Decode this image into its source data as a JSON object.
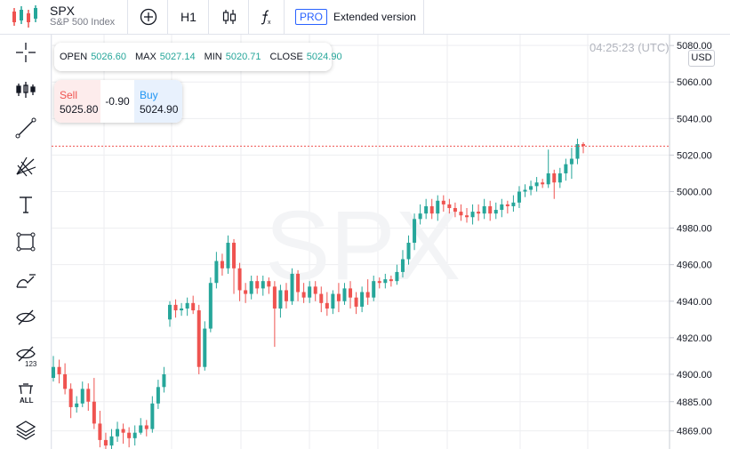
{
  "header": {
    "symbol": "SPX",
    "description": "S&P 500 Index",
    "timeframe": "H1",
    "pro_label": "PRO",
    "extended_label": "Extended version"
  },
  "ohlc": {
    "open_label": "OPEN",
    "open": "5026.60",
    "max_label": "MAX",
    "max": "5027.14",
    "min_label": "MIN",
    "min": "5020.71",
    "close_label": "CLOSE",
    "close": "5024.90"
  },
  "trade": {
    "sell_label": "Sell",
    "sell_price": "5025.80",
    "spread": "-0.90",
    "buy_label": "Buy",
    "buy_price": "5024.90"
  },
  "clock": "04:25:23 (UTC)",
  "currency": "USD",
  "watermark": "SPX",
  "left_tools": [
    "crosshair-icon",
    "indicators-icon",
    "trendline-icon",
    "fib-icon",
    "text-icon",
    "shape-icon",
    "brush-icon",
    "hide-drawings-icon",
    "hide-indicators-icon",
    "delete-all-icon",
    "layers-icon"
  ],
  "colors": {
    "up": "#26a69a",
    "down": "#ef5350",
    "price_line": "#ef5350"
  },
  "chart_data": {
    "type": "candlestick",
    "ylabels": [
      "5080.00",
      "5060.00",
      "5040.00",
      "5020.00",
      "5000.00",
      "4980.00",
      "4960.00",
      "4940.00",
      "4920.00",
      "4900.00",
      "4885.00",
      "4869.00"
    ],
    "ytick_values": [
      5080,
      5060,
      5040,
      5020,
      5000,
      4980,
      4960,
      4940,
      4920,
      4900,
      4885,
      4869
    ],
    "ylim": [
      4862,
      5083
    ],
    "last_price": 5024.9,
    "grid": true,
    "candles": [
      [
        4898,
        4904,
        4910,
        4896
      ],
      [
        4904,
        4900,
        4908,
        4895
      ],
      [
        4900,
        4892,
        4906,
        4889
      ],
      [
        4892,
        4882,
        4895,
        4876
      ],
      [
        4882,
        4884,
        4888,
        4879
      ],
      [
        4884,
        4892,
        4896,
        4882
      ],
      [
        4892,
        4885,
        4895,
        4880
      ],
      [
        4885,
        4873,
        4898,
        4870
      ],
      [
        4873,
        4864,
        4880,
        4860
      ],
      [
        4864,
        4861,
        4868,
        4857
      ],
      [
        4861,
        4866,
        4870,
        4857
      ],
      [
        4866,
        4870,
        4874,
        4863
      ],
      [
        4870,
        4868,
        4873,
        4862
      ],
      [
        4868,
        4865,
        4871,
        4860
      ],
      [
        4865,
        4868,
        4872,
        4861
      ],
      [
        4868,
        4872,
        4876,
        4867
      ],
      [
        4872,
        4870,
        4875,
        4866
      ],
      [
        4870,
        4884,
        4888,
        4868
      ],
      [
        4884,
        4893,
        4897,
        4881
      ],
      [
        4893,
        4900,
        4904,
        4890
      ],
      [
        4930,
        4938,
        4940,
        4926
      ],
      [
        4938,
        4935,
        4941,
        4931
      ],
      [
        4935,
        4936,
        4939,
        4932
      ],
      [
        4936,
        4939,
        4942,
        4932
      ],
      [
        4939,
        4935,
        4943,
        4933
      ],
      [
        4935,
        4904,
        4938,
        4900
      ],
      [
        4904,
        4925,
        4929,
        4902
      ],
      [
        4925,
        4950,
        4953,
        4923
      ],
      [
        4950,
        4962,
        4967,
        4947
      ],
      [
        4962,
        4958,
        4966,
        4954
      ],
      [
        4958,
        4972,
        4976,
        4955
      ],
      [
        4972,
        4958,
        4974,
        4944
      ],
      [
        4958,
        4946,
        4961,
        4940
      ],
      [
        4946,
        4944,
        4950,
        4939
      ],
      [
        4944,
        4951,
        4954,
        4941
      ],
      [
        4951,
        4947,
        4954,
        4944
      ],
      [
        4947,
        4951,
        4954,
        4943
      ],
      [
        4951,
        4948,
        4953,
        4944
      ],
      [
        4948,
        4936,
        4951,
        4915
      ],
      [
        4936,
        4946,
        4949,
        4931
      ],
      [
        4946,
        4940,
        4950,
        4936
      ],
      [
        4940,
        4955,
        4958,
        4938
      ],
      [
        4955,
        4945,
        4957,
        4940
      ],
      [
        4945,
        4942,
        4950,
        4939
      ],
      [
        4942,
        4948,
        4951,
        4939
      ],
      [
        4948,
        4944,
        4951,
        4940
      ],
      [
        4944,
        4939,
        4948,
        4934
      ],
      [
        4939,
        4936,
        4945,
        4932
      ],
      [
        4936,
        4944,
        4946,
        4933
      ],
      [
        4944,
        4940,
        4950,
        4934
      ],
      [
        4940,
        4947,
        4950,
        4938
      ],
      [
        4947,
        4942,
        4951,
        4936
      ],
      [
        4942,
        4937,
        4945,
        4933
      ],
      [
        4937,
        4945,
        4948,
        4934
      ],
      [
        4945,
        4942,
        4952,
        4938
      ],
      [
        4942,
        4951,
        4954,
        4940
      ],
      [
        4951,
        4950,
        4953,
        4947
      ],
      [
        4950,
        4952,
        4955,
        4947
      ],
      [
        4952,
        4951,
        4954,
        4948
      ],
      [
        4951,
        4956,
        4960,
        4949
      ],
      [
        4956,
        4963,
        4968,
        4953
      ],
      [
        4963,
        4972,
        4976,
        4960
      ],
      [
        4972,
        4985,
        4988,
        4968
      ],
      [
        4985,
        4988,
        4993,
        4982
      ],
      [
        4988,
        4992,
        4996,
        4985
      ],
      [
        4992,
        4988,
        4996,
        4985
      ],
      [
        4988,
        4995,
        4998,
        4984
      ],
      [
        4995,
        4993,
        4998,
        4989
      ],
      [
        4993,
        4991,
        4996,
        4988
      ],
      [
        4991,
        4989,
        4994,
        4986
      ],
      [
        4989,
        4987,
        4993,
        4984
      ],
      [
        4987,
        4986,
        4991,
        4983
      ],
      [
        4986,
        4989,
        4993,
        4982
      ],
      [
        4989,
        4988,
        4993,
        4984
      ],
      [
        4988,
        4992,
        4996,
        4985
      ],
      [
        4992,
        4988,
        4995,
        4984
      ],
      [
        4988,
        4990,
        4994,
        4985
      ],
      [
        4990,
        4993,
        4996,
        4986
      ],
      [
        4993,
        4992,
        4995,
        4988
      ],
      [
        4992,
        4994,
        4998,
        4989
      ],
      [
        4994,
        5000,
        5003,
        4991
      ],
      [
        5000,
        5001,
        5004,
        4997
      ],
      [
        5001,
        5003,
        5006,
        4998
      ],
      [
        5003,
        5005,
        5008,
        5000
      ],
      [
        5005,
        5004,
        5007,
        5002
      ],
      [
        5004,
        5010,
        5023,
        5002
      ],
      [
        5010,
        5005,
        5012,
        4996
      ],
      [
        5005,
        5010,
        5013,
        5002
      ],
      [
        5010,
        5015,
        5018,
        5006
      ],
      [
        5015,
        5018,
        5024,
        5007
      ],
      [
        5018,
        5026,
        5029,
        5015
      ],
      [
        5026,
        5025,
        5027,
        5021
      ]
    ]
  }
}
